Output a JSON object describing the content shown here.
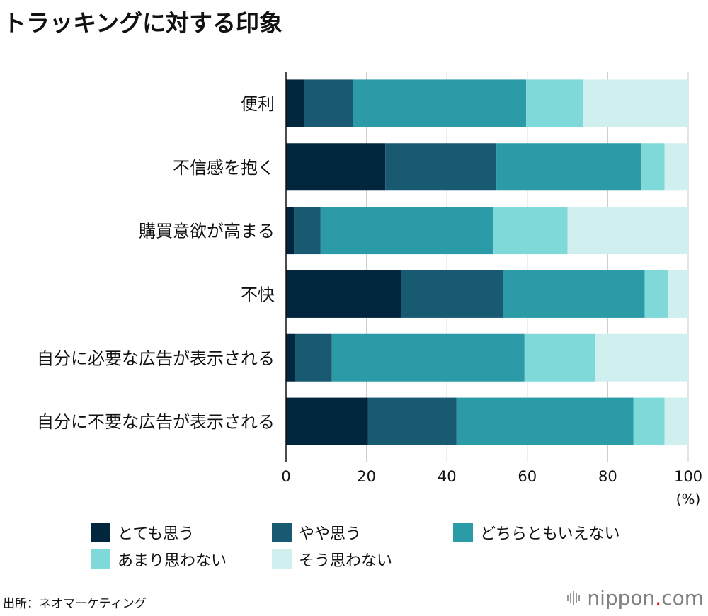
{
  "title": "トラッキングに対する印象",
  "source": "出所：ネオマーケティング",
  "logo": {
    "name": "nippon",
    "dot": ".",
    "suffix": "com"
  },
  "chart_data": {
    "type": "bar",
    "orientation": "horizontal",
    "stacked": true,
    "categories": [
      "便利",
      "不信感を抱く",
      "購買意欲が高まる",
      "不快",
      "自分に必要な広告が表示される",
      "自分に不要な広告が表示される"
    ],
    "series": [
      {
        "name": "とても思う",
        "color": "#03263f",
        "values": [
          4.5,
          24.7,
          2.0,
          28.6,
          2.2,
          20.4
        ]
      },
      {
        "name": "やや思う",
        "color": "#185a72",
        "values": [
          12.1,
          27.6,
          6.6,
          25.4,
          9.2,
          22.0
        ]
      },
      {
        "name": "どちらともいえない",
        "color": "#2b9ba7",
        "values": [
          43.1,
          36.1,
          43.0,
          35.2,
          47.9,
          44.0
        ]
      },
      {
        "name": "あまり思わない",
        "color": "#7fd9d9",
        "values": [
          14.2,
          5.7,
          18.4,
          5.9,
          17.6,
          7.7
        ]
      },
      {
        "name": "そう思わない",
        "color": "#d0f0f0",
        "values": [
          26.1,
          5.9,
          30.0,
          4.9,
          23.1,
          5.9
        ]
      }
    ],
    "xlim": [
      0,
      100
    ],
    "xticks": [
      "0",
      "20",
      "40",
      "60",
      "80",
      "100"
    ],
    "xunit": "(%)",
    "grid": true,
    "legend_position": "bottom"
  }
}
